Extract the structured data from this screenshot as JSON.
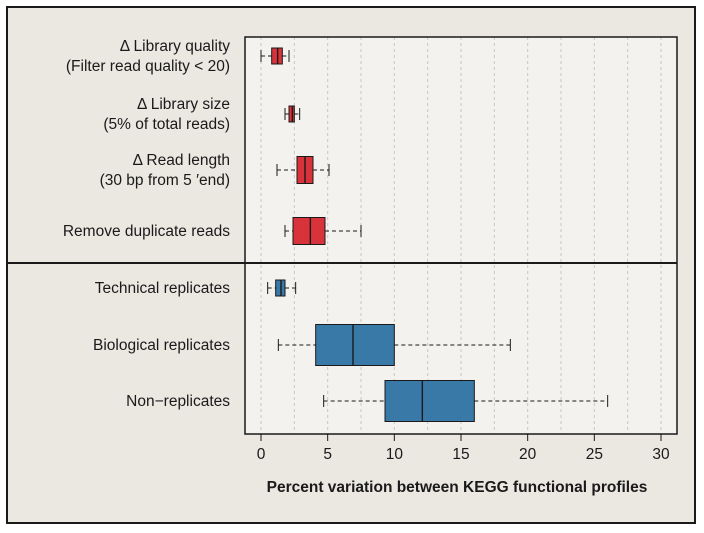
{
  "chart_data": {
    "type": "boxplot",
    "orientation": "horizontal",
    "xlabel": "Percent variation between KEGG functional profiles",
    "xlim": [
      -1.2,
      31.2
    ],
    "xticks": [
      0,
      5,
      10,
      15,
      20,
      25,
      30
    ],
    "grid": "vertical-dashed",
    "colors": {
      "red": "#d8333a",
      "blue": "#3979a8"
    },
    "groups": [
      {
        "name": "filters",
        "color": "#d8333a",
        "items": [
          {
            "label_lines": [
              "Δ Library quality",
              "(Filter read quality < 20)"
            ],
            "whisker_low": 0.0,
            "q1": 0.8,
            "median": 1.25,
            "q3": 1.6,
            "whisker_high": 2.1
          },
          {
            "label_lines": [
              "Δ Library size",
              "(5% of total reads)"
            ],
            "whisker_low": 1.8,
            "q1": 2.1,
            "median": 2.35,
            "q3": 2.5,
            "whisker_high": 2.9
          },
          {
            "label_lines": [
              "Δ Read length",
              "(30 bp from 5 ′end)"
            ],
            "whisker_low": 1.2,
            "q1": 2.7,
            "median": 3.3,
            "q3": 3.9,
            "whisker_high": 5.1
          },
          {
            "label_lines": [
              "Remove duplicate reads"
            ],
            "whisker_low": 1.8,
            "q1": 2.4,
            "median": 3.7,
            "q3": 4.8,
            "whisker_high": 7.5
          }
        ]
      },
      {
        "name": "replicates",
        "color": "#3979a8",
        "items": [
          {
            "label_lines": [
              "Technical replicates"
            ],
            "whisker_low": 0.5,
            "q1": 1.1,
            "median": 1.5,
            "q3": 1.8,
            "whisker_high": 2.6
          },
          {
            "label_lines": [
              "Biological replicates"
            ],
            "whisker_low": 1.3,
            "q1": 4.1,
            "median": 6.9,
            "q3": 10.0,
            "whisker_high": 18.7
          },
          {
            "label_lines": [
              "Non−replicates"
            ],
            "whisker_low": 4.7,
            "q1": 9.3,
            "median": 12.1,
            "q3": 16.0,
            "whisker_high": 26.0
          }
        ]
      }
    ]
  }
}
